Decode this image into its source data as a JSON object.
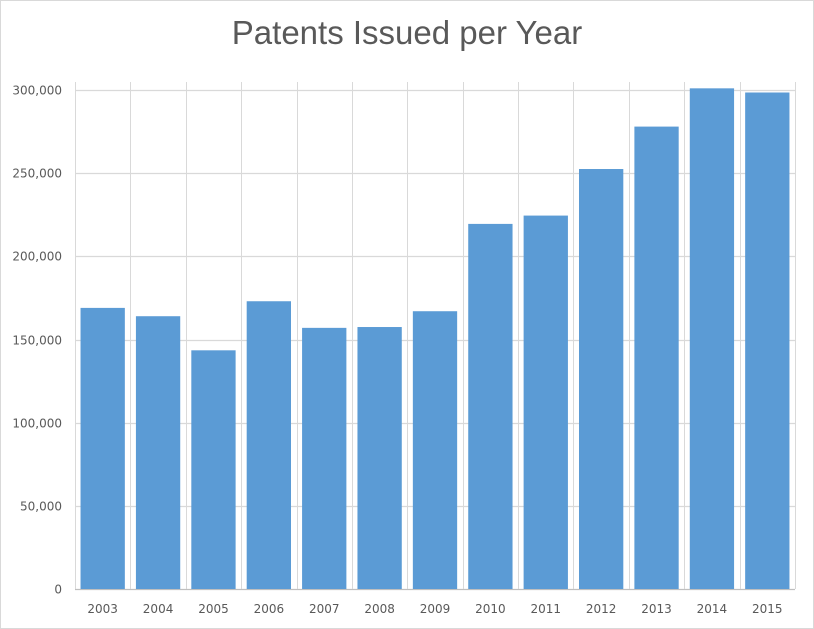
{
  "chart_data": {
    "type": "bar",
    "title": "Patents Issued per Year",
    "xlabel": "",
    "ylabel": "",
    "categories": [
      "2003",
      "2004",
      "2005",
      "2006",
      "2007",
      "2008",
      "2009",
      "2010",
      "2011",
      "2012",
      "2013",
      "2014",
      "2015"
    ],
    "values": [
      169000,
      164000,
      143500,
      173000,
      157000,
      157500,
      167000,
      219500,
      224500,
      252500,
      278000,
      301000,
      298500
    ],
    "ylim": [
      0,
      300000
    ],
    "yticks": [
      0,
      50000,
      100000,
      150000,
      200000,
      250000,
      300000
    ],
    "ytick_labels": [
      "0",
      "50,000",
      "100,000",
      "150,000",
      "200,000",
      "250,000",
      "300,000"
    ],
    "grid": true,
    "bar_color": "#5b9bd5",
    "grid_color": "#d9d9d9",
    "text_color": "#595959"
  }
}
